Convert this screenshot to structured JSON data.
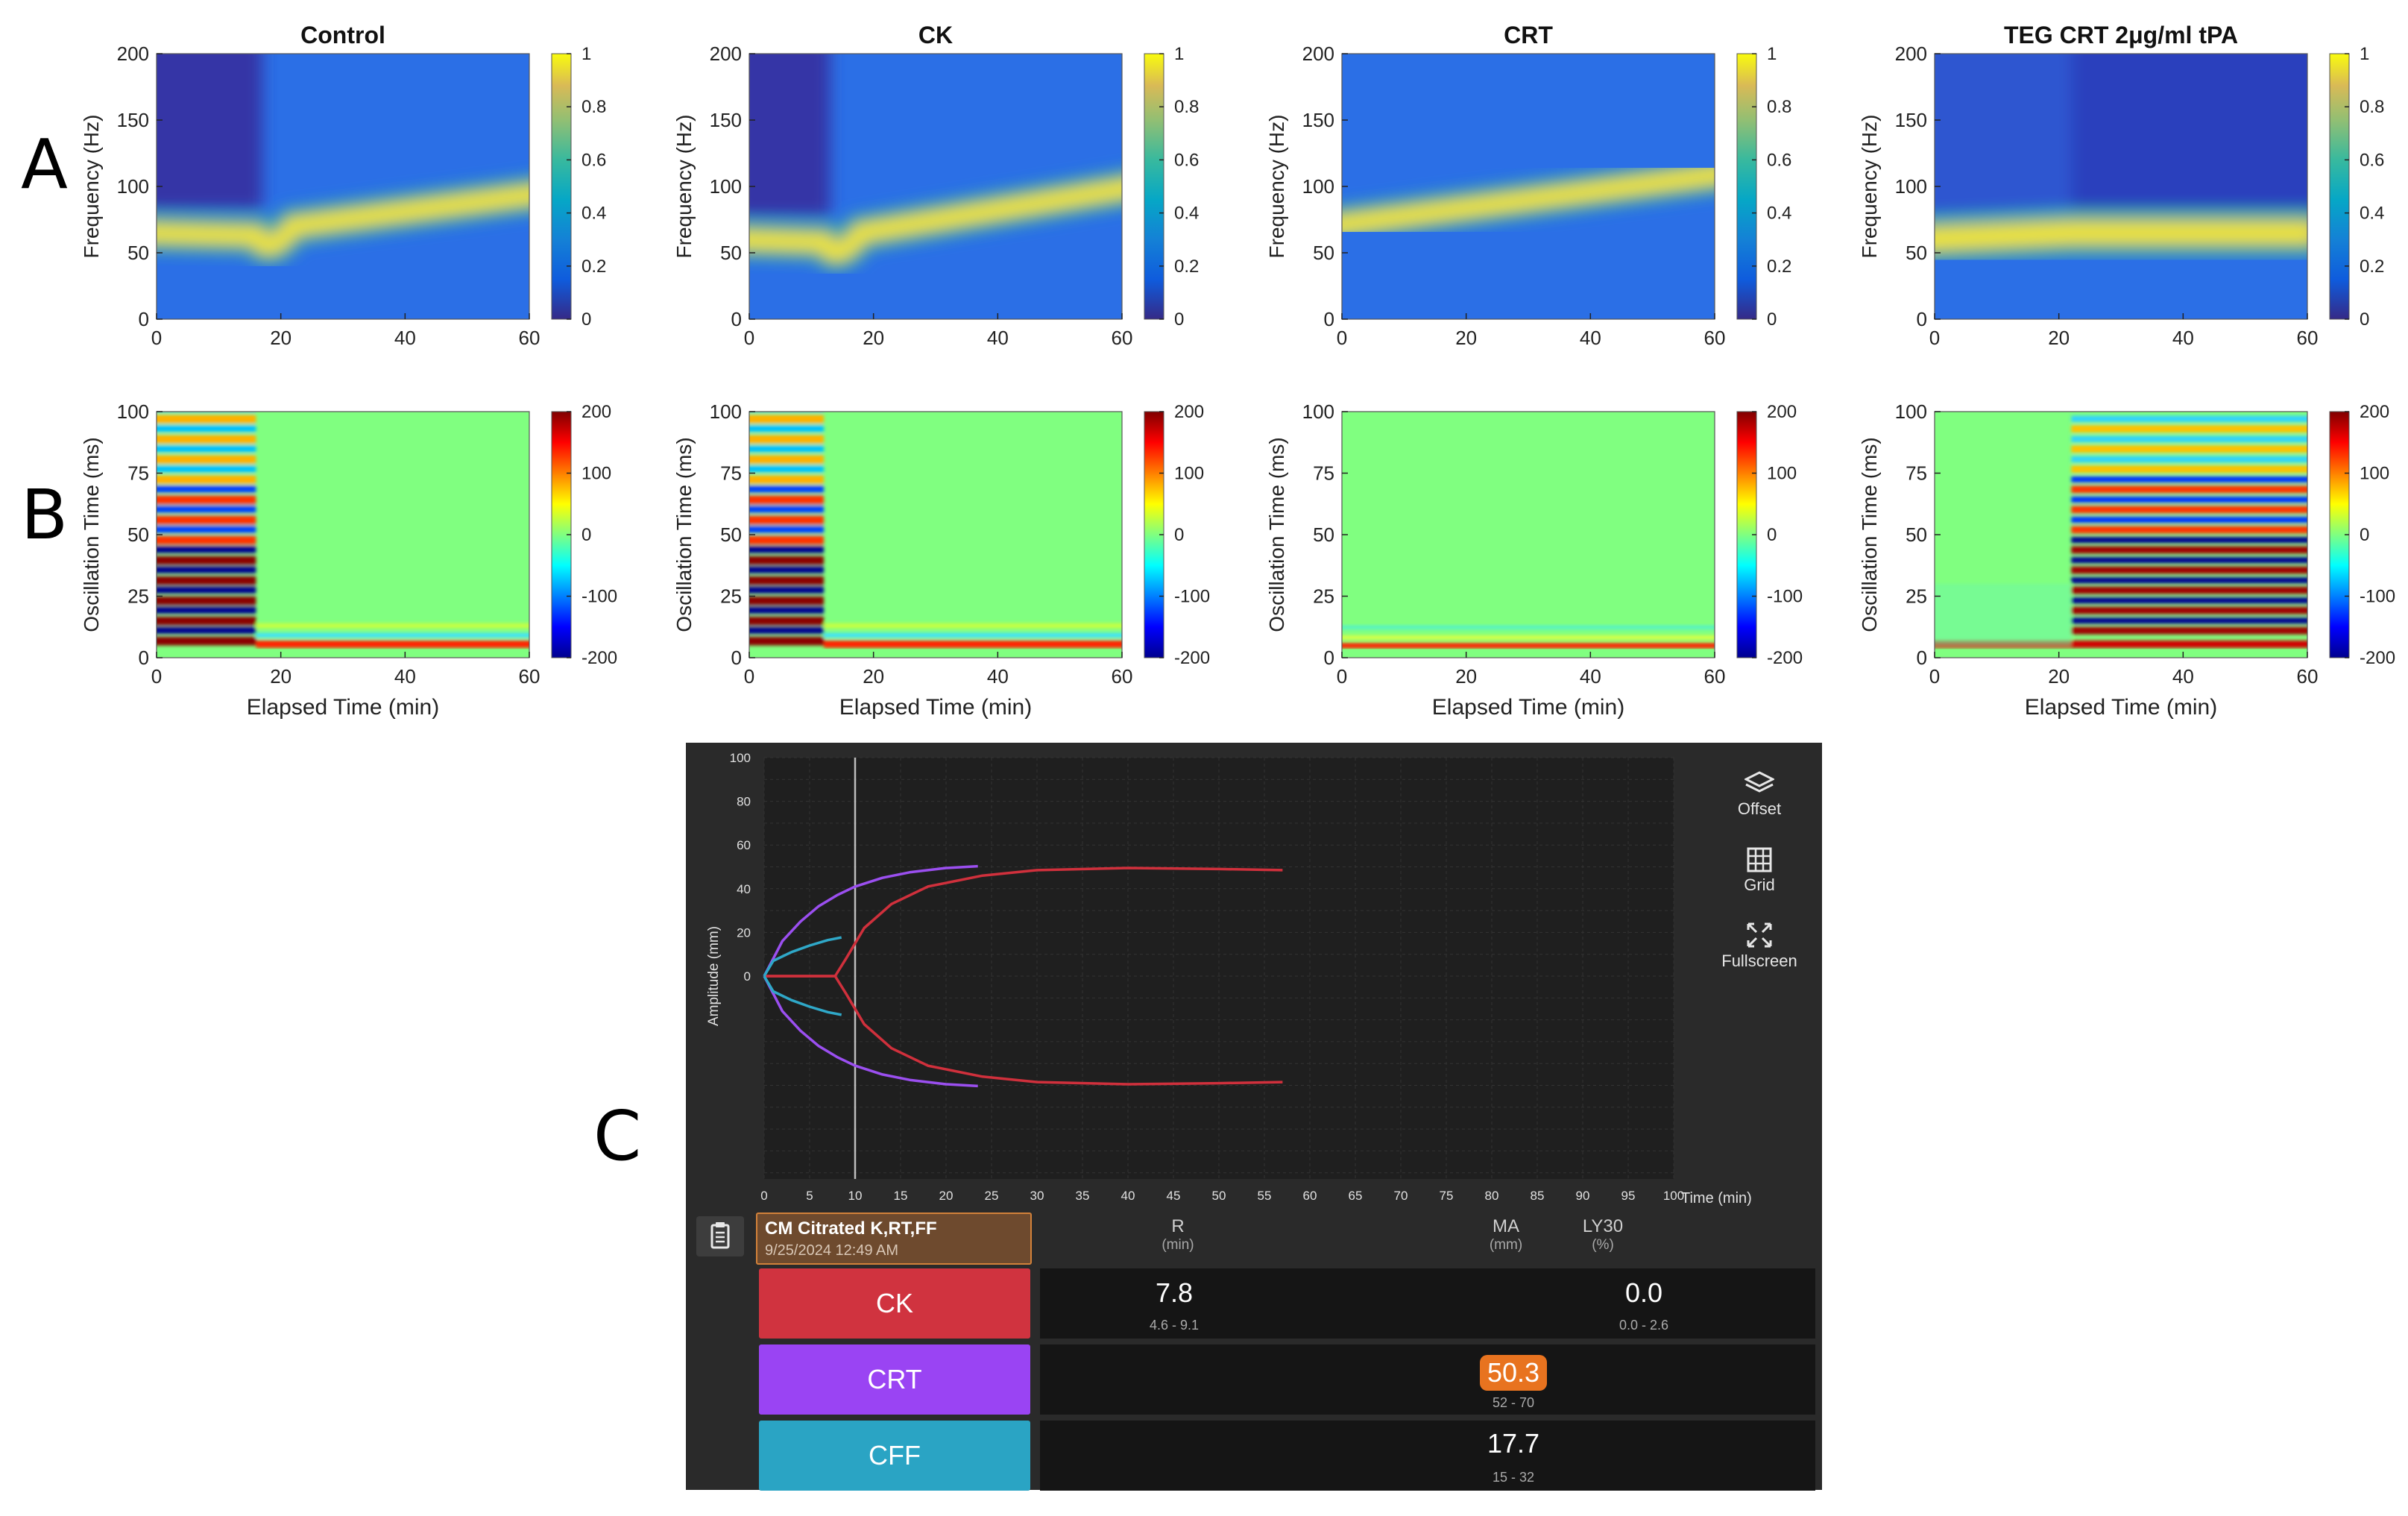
{
  "panel_letters": {
    "a": "A",
    "b": "B",
    "c": "C"
  },
  "columns": [
    {
      "title": "Control"
    },
    {
      "title": "CK"
    },
    {
      "title": "CRT"
    },
    {
      "title": "TEG CRT 2μg/ml tPA"
    }
  ],
  "chart_data": [
    {
      "type": "heatmap",
      "panel": "A",
      "ylabel": "Frequency (Hz)",
      "xlabel": "",
      "xlim": [
        0,
        60
      ],
      "ylim": [
        0,
        200
      ],
      "xticks": [
        0,
        20,
        40,
        60
      ],
      "yticks": [
        0,
        50,
        100,
        150,
        200
      ],
      "colorbar": {
        "range": [
          0,
          1
        ],
        "ticks": [
          "0",
          "0.2",
          "0.4",
          "0.6",
          "0.8",
          "1"
        ]
      },
      "colormap": "parula",
      "series": [
        {
          "name": "Control",
          "transition_min": 17,
          "start_freq_hz": 65,
          "end_freq_hz": 95
        },
        {
          "name": "CK",
          "transition_min": 13,
          "start_freq_hz": 60,
          "end_freq_hz": 100
        },
        {
          "name": "CRT",
          "transition_min": 0,
          "start_freq_hz": 70,
          "end_freq_hz": 110
        },
        {
          "name": "TEG CRT 2μg/ml tPA",
          "transition_min": 22,
          "start_freq_hz": 60,
          "end_freq_hz": 65
        }
      ]
    },
    {
      "type": "heatmap",
      "panel": "B",
      "ylabel": "Oscillation Time (ms)",
      "xlabel": "Elapsed Time (min)",
      "xlim": [
        0,
        60
      ],
      "ylim": [
        0,
        100
      ],
      "xticks": [
        0,
        20,
        40,
        60
      ],
      "yticks": [
        0,
        25,
        50,
        75,
        100
      ],
      "colorbar": {
        "range": [
          -200,
          200
        ],
        "ticks": [
          "-200",
          "-100",
          "0",
          "100",
          "200"
        ]
      },
      "colormap": "jet",
      "series": [
        {
          "name": "Control",
          "oscillation_end_min": 16
        },
        {
          "name": "CK",
          "oscillation_end_min": 12
        },
        {
          "name": "CRT",
          "oscillation_end_min": 0
        },
        {
          "name": "TEG CRT 2μg/ml tPA",
          "oscillation_start_min": 22
        }
      ]
    },
    {
      "type": "line",
      "panel": "C",
      "ylabel": "Amplitude (mm)",
      "xlabel": "Time (min)",
      "xlim": [
        0,
        100
      ],
      "ylim": [
        -100,
        100
      ],
      "xticks": [
        0,
        5,
        10,
        15,
        20,
        25,
        30,
        35,
        40,
        45,
        50,
        55,
        60,
        65,
        70,
        75,
        80,
        85,
        90,
        95,
        100
      ],
      "yticks": [
        0,
        20,
        40,
        60,
        80,
        100
      ],
      "cursor_x": 10,
      "series": [
        {
          "name": "CK",
          "color": "#d0303c",
          "x": [
            0,
            1,
            3,
            6,
            7.8,
            9,
            11,
            14,
            18,
            24,
            30,
            40,
            50,
            57
          ],
          "y": [
            0,
            0,
            0,
            0,
            0,
            8,
            22,
            33,
            41,
            46,
            48.5,
            49.5,
            49,
            48.5
          ]
        },
        {
          "name": "CRT",
          "color": "#9b4ff0",
          "x": [
            0,
            1,
            2,
            4,
            6,
            8,
            10,
            13,
            16,
            20,
            23.5
          ],
          "y": [
            0,
            8,
            16,
            25,
            32,
            37,
            41,
            45,
            47.5,
            49.5,
            50.3
          ]
        },
        {
          "name": "CFF",
          "color": "#2fa8c8",
          "x": [
            0,
            1,
            3,
            5,
            7,
            8.5
          ],
          "y": [
            0,
            7,
            11,
            14,
            16.5,
            17.7
          ]
        }
      ]
    }
  ],
  "teg": {
    "side_buttons": {
      "offset": "Offset",
      "grid": "Grid",
      "fullscreen": "Fullscreen"
    },
    "sample": {
      "name": "CM Citrated K,RT,FF",
      "date": "9/25/2024 12:49 AM"
    },
    "headers": {
      "r": {
        "label": "R",
        "unit": "(min)"
      },
      "ma": {
        "label": "MA",
        "unit": "(mm)"
      },
      "ly30": {
        "label": "LY30",
        "unit": "(%)"
      }
    },
    "rows": {
      "ck": {
        "label": "CK",
        "color": "#d0333f",
        "r_value": "7.8",
        "r_range": "4.6 - 9.1",
        "ly30_value": "0.0",
        "ly30_range": "0.0 - 2.6"
      },
      "crt": {
        "label": "CRT",
        "color": "#9a44f3",
        "ma_value": "50.3",
        "ma_range": "52 - 70"
      },
      "cff": {
        "label": "CFF",
        "color": "#2aa4c4",
        "ma_value": "17.7",
        "ma_range": "15 - 32"
      }
    }
  }
}
